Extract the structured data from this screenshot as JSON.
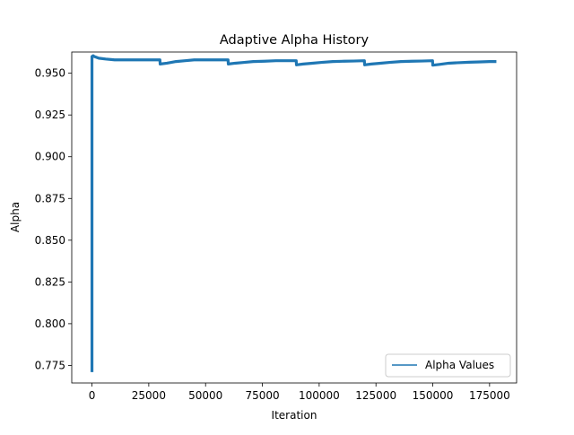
{
  "chart_data": {
    "type": "line",
    "title": "Adaptive Alpha History",
    "xlabel": "Iteration",
    "ylabel": "Alpha",
    "xlim": [
      -8900,
      186900
    ],
    "ylim": [
      0.7645,
      0.9627
    ],
    "xticks": [
      0,
      25000,
      50000,
      75000,
      100000,
      125000,
      150000,
      175000
    ],
    "yticks": [
      0.775,
      0.8,
      0.825,
      0.85,
      0.875,
      0.9,
      0.925,
      0.95
    ],
    "xtick_labels": [
      "0",
      "25000",
      "50000",
      "75000",
      "100000",
      "125000",
      "150000",
      "175000"
    ],
    "ytick_labels": [
      "0.775",
      "0.800",
      "0.825",
      "0.850",
      "0.875",
      "0.900",
      "0.925",
      "0.950"
    ],
    "grid": false,
    "legend_position": "lower right",
    "series": [
      {
        "name": "Alpha Values",
        "color": "#1f77b4",
        "x": [
          0,
          0,
          500,
          1000,
          3000,
          6000,
          10000,
          15000,
          20000,
          25000,
          29900,
          30000,
          33000,
          37000,
          41000,
          45000,
          50000,
          55000,
          59900,
          60000,
          63000,
          67000,
          71000,
          76000,
          81000,
          85000,
          89900,
          90000,
          93000,
          97000,
          101000,
          106000,
          111000,
          115000,
          119900,
          120000,
          123000,
          127000,
          131000,
          136000,
          141000,
          145000,
          149900,
          150000,
          153000,
          157000,
          161000,
          166000,
          171000,
          175000,
          178000
        ],
        "y": [
          0.771,
          0.96,
          0.9605,
          0.96,
          0.959,
          0.9585,
          0.958,
          0.958,
          0.958,
          0.958,
          0.958,
          0.9555,
          0.956,
          0.957,
          0.9575,
          0.958,
          0.958,
          0.958,
          0.958,
          0.9555,
          0.956,
          0.9565,
          0.957,
          0.9572,
          0.9575,
          0.9575,
          0.9575,
          0.955,
          0.9555,
          0.956,
          0.9565,
          0.957,
          0.9572,
          0.9573,
          0.9575,
          0.955,
          0.9555,
          0.956,
          0.9565,
          0.957,
          0.9572,
          0.9573,
          0.9575,
          0.9548,
          0.9553,
          0.956,
          0.9563,
          0.9566,
          0.9568,
          0.957,
          0.957
        ]
      }
    ]
  }
}
